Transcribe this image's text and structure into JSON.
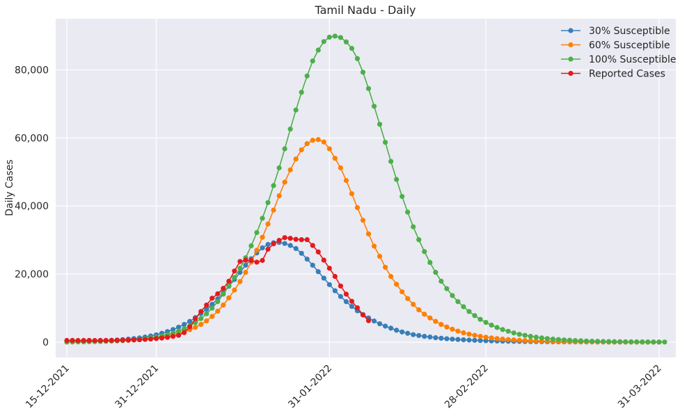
{
  "chart_data": {
    "type": "line",
    "title": "Tamil Nadu - Daily",
    "xlabel": "",
    "ylabel": "Daily Cases",
    "x_start": "15-12-2021",
    "x_end": "31-03-2022",
    "xlim": [
      "13-12-2021",
      "03-04-2022"
    ],
    "ylim": [
      -4500,
      95000
    ],
    "x_ticks": [
      "15-12-2021",
      "31-12-2021",
      "31-01-2022",
      "28-02-2022",
      "31-03-2022"
    ],
    "y_ticks": [
      0,
      20000,
      40000,
      60000,
      80000
    ],
    "y_tick_labels": [
      "0",
      "20,000",
      "40,000",
      "60,000",
      "80,000"
    ],
    "grid": true,
    "background": "#eaeaf2",
    "legend_position": "top-right",
    "legend": [
      "30% Susceptible",
      "60% Susceptible",
      "100% Susceptible",
      "Reported Cases"
    ],
    "series": [
      {
        "name": "30% Susceptible",
        "color": "#377eb8",
        "values": [
          100,
          150,
          200,
          250,
          300,
          350,
          400,
          450,
          550,
          650,
          750,
          900,
          1050,
          1250,
          1500,
          1800,
          2150,
          2600,
          3100,
          3700,
          4400,
          5200,
          6100,
          7200,
          8400,
          9700,
          11100,
          12700,
          14500,
          16400,
          18400,
          20500,
          22600,
          24500,
          26200,
          27700,
          28700,
          29200,
          29300,
          29000,
          28400,
          27500,
          26100,
          24400,
          22600,
          20700,
          18800,
          16900,
          15100,
          13400,
          11900,
          10500,
          9200,
          8100,
          7100,
          6200,
          5400,
          4700,
          4100,
          3500,
          3000,
          2600,
          2200,
          1950,
          1700,
          1500,
          1300,
          1150,
          1000,
          880,
          780,
          690,
          610,
          540,
          480,
          420,
          370,
          330,
          290,
          260,
          230,
          200,
          180,
          160,
          140,
          125,
          110,
          100,
          90,
          80,
          70,
          62,
          55,
          49,
          43,
          38,
          34,
          30,
          27,
          24,
          21,
          19,
          17,
          15,
          13,
          12,
          10
        ]
      },
      {
        "name": "60% Susceptible",
        "color": "#ff7f00",
        "values": [
          50,
          80,
          100,
          130,
          160,
          200,
          250,
          300,
          350,
          400,
          480,
          560,
          650,
          780,
          920,
          1080,
          1280,
          1520,
          1800,
          2150,
          2550,
          3050,
          3650,
          4350,
          5200,
          6250,
          7550,
          9100,
          10900,
          13000,
          15300,
          17800,
          20500,
          23500,
          27000,
          30800,
          34700,
          38800,
          43000,
          47000,
          50600,
          53800,
          56500,
          58300,
          59300,
          59500,
          58800,
          56800,
          54000,
          51200,
          47500,
          43600,
          39500,
          35800,
          31800,
          28200,
          25200,
          22000,
          19300,
          17000,
          14800,
          12800,
          11100,
          9500,
          8200,
          7100,
          6100,
          5200,
          4450,
          3800,
          3250,
          2750,
          2350,
          2000,
          1700,
          1450,
          1230,
          1050,
          890,
          760,
          640,
          550,
          470,
          400,
          340,
          290,
          250,
          210,
          180,
          150,
          130,
          110,
          95,
          80,
          68,
          58,
          50,
          42,
          36,
          31,
          26,
          22,
          19,
          16,
          14,
          12,
          10
        ]
      },
      {
        "name": "100% Susceptible",
        "color": "#4daf4a",
        "values": [
          30,
          50,
          70,
          90,
          120,
          150,
          190,
          240,
          300,
          370,
          450,
          550,
          680,
          830,
          1010,
          1230,
          1500,
          1820,
          2210,
          2680,
          3250,
          3930,
          4750,
          5740,
          6920,
          8330,
          10000,
          11900,
          14100,
          16500,
          19000,
          21700,
          24800,
          28300,
          32200,
          36400,
          41000,
          46000,
          51200,
          56800,
          62600,
          68200,
          73400,
          78200,
          82600,
          85800,
          88300,
          89600,
          89900,
          89500,
          88200,
          86300,
          83300,
          79300,
          74500,
          69300,
          64000,
          58700,
          53100,
          47800,
          42800,
          38200,
          33900,
          30100,
          26600,
          23400,
          20500,
          17900,
          15700,
          13700,
          11900,
          10400,
          9000,
          7800,
          6700,
          5800,
          5000,
          4300,
          3700,
          3200,
          2700,
          2300,
          2000,
          1700,
          1450,
          1240,
          1060,
          900,
          770,
          650,
          560,
          470,
          400,
          340,
          290,
          250,
          210,
          180,
          150,
          130,
          110,
          95,
          80,
          68,
          58,
          50,
          43,
          37
        ]
      },
      {
        "name": "Reported Cases",
        "color": "#e41a1c",
        "values": [
          500,
          520,
          480,
          500,
          510,
          490,
          510,
          500,
          520,
          540,
          560,
          600,
          650,
          700,
          800,
          900,
          1050,
          1200,
          1400,
          1700,
          2000,
          2800,
          4500,
          6900,
          9000,
          10900,
          12900,
          14200,
          15800,
          17900,
          20900,
          23700,
          24100,
          24000,
          23500,
          24000,
          27300,
          28900,
          29900,
          30700,
          30500,
          30200,
          30100,
          30100,
          28400,
          26500,
          24100,
          21700,
          19300,
          16500,
          14100,
          12000,
          10100,
          8000,
          6300
        ]
      }
    ]
  }
}
